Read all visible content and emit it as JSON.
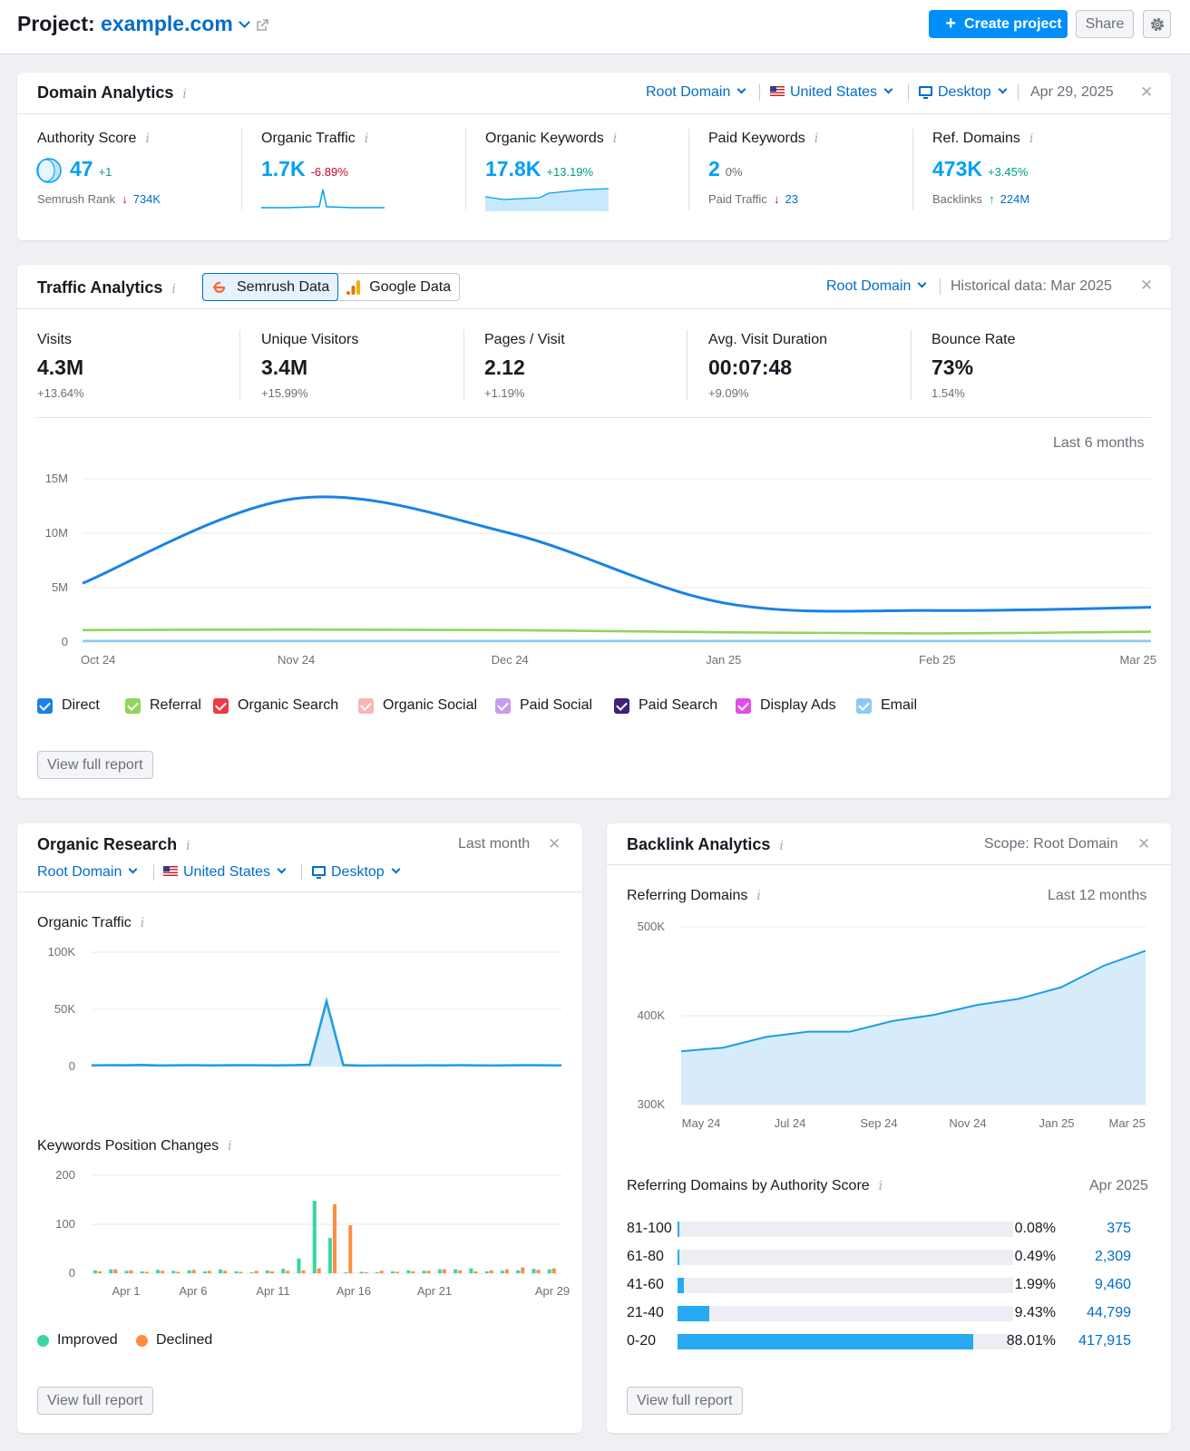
{
  "header": {
    "project_prefix": "Project:",
    "project_domain": "example.com",
    "create_label": "Create project",
    "share_label": "Share"
  },
  "domain_analytics": {
    "title": "Domain Analytics",
    "scope": "Root Domain",
    "country": "United States",
    "device": "Desktop",
    "date": "Apr 29, 2025",
    "metrics": [
      {
        "label": "Authority Score",
        "value": "47",
        "delta": "+1",
        "sub_label": "Semrush Rank",
        "sub_arrow": "↓",
        "sub_value": "734K"
      },
      {
        "label": "Organic Traffic",
        "value": "1.7K",
        "delta": "-6.89%"
      },
      {
        "label": "Organic Keywords",
        "value": "17.8K",
        "delta": "+13.19%"
      },
      {
        "label": "Paid Keywords",
        "value": "2",
        "delta": "0%",
        "sub_label": "Paid Traffic",
        "sub_arrow": "↓",
        "sub_value": "23"
      },
      {
        "label": "Ref. Domains",
        "value": "473K",
        "delta": "+3.45%",
        "sub_label": "Backlinks",
        "sub_arrow": "↑",
        "sub_value": "224M"
      }
    ],
    "colors": {
      "accent": "#009ff5",
      "link": "#006dca",
      "positive": "#009f81",
      "negative": "#d1002f"
    }
  },
  "traffic_analytics": {
    "title": "Traffic Analytics",
    "tab_semrush": "Semrush Data",
    "tab_google": "Google Data",
    "scope": "Root Domain",
    "historical": "Historical data: Mar 2025",
    "period": "Last 6 months",
    "metrics": [
      {
        "label": "Visits",
        "value": "4.3M",
        "delta": "+13.64%"
      },
      {
        "label": "Unique Visitors",
        "value": "3.4M",
        "delta": "+15.99%"
      },
      {
        "label": "Pages / Visit",
        "value": "2.12",
        "delta": "+1.19%"
      },
      {
        "label": "Avg. Visit Duration",
        "value": "00:07:48",
        "delta": "+9.09%"
      },
      {
        "label": "Bounce Rate",
        "value": "73%",
        "delta": "1.54%"
      }
    ],
    "legend": [
      {
        "name": "Direct",
        "color": "#1a82e5"
      },
      {
        "name": "Referral",
        "color": "#8fd65a"
      },
      {
        "name": "Organic Search",
        "color": "#ef3a46"
      },
      {
        "name": "Organic Social",
        "color": "#f7b6b6"
      },
      {
        "name": "Paid Social",
        "color": "#c89af0"
      },
      {
        "name": "Paid Search",
        "color": "#3f2176"
      },
      {
        "name": "Display Ads",
        "color": "#df4fe6"
      },
      {
        "name": "Email",
        "color": "#8ec9f5"
      }
    ],
    "view_full": "View full report"
  },
  "organic_research": {
    "title": "Organic Research",
    "period": "Last month",
    "scope": "Root Domain",
    "country": "United States",
    "device": "Desktop",
    "traffic_title": "Organic Traffic",
    "changes_title": "Keywords Position Changes",
    "legend_improved": "Improved",
    "legend_declined": "Declined",
    "view_full": "View full report"
  },
  "backlink_analytics": {
    "title": "Backlink Analytics",
    "scope": "Scope: Root Domain",
    "ref_title": "Referring Domains",
    "ref_period": "Last 12 months",
    "as_title": "Referring Domains by Authority Score",
    "as_period": "Apr 2025",
    "view_full": "View full report"
  },
  "chart_data": [
    {
      "type": "line",
      "title": "",
      "x": [
        "Oct 24",
        "Nov 24",
        "Dec 24",
        "Jan 25",
        "Feb 25",
        "Mar 25"
      ],
      "ylim": [
        0,
        15000000
      ],
      "yticks": [
        "15M",
        "10M",
        "5M",
        "0"
      ],
      "series": [
        {
          "name": "Direct",
          "values": [
            5400000,
            13200000,
            10000000,
            3600000,
            2900000,
            3200000
          ]
        },
        {
          "name": "Referral",
          "values": [
            1100000,
            1150000,
            1100000,
            900000,
            800000,
            950000
          ]
        },
        {
          "name": "Email",
          "values": [
            100000,
            100000,
            100000,
            100000,
            100000,
            100000
          ]
        }
      ]
    },
    {
      "type": "area",
      "title": "Organic Traffic",
      "ylim": [
        0,
        100000
      ],
      "yticks": [
        "100K",
        "50K",
        "0"
      ],
      "x_labels": [
        "Apr 1",
        "Apr 6",
        "Apr 11",
        "Apr 16",
        "Apr 21",
        "Apr 29"
      ],
      "values": [
        1000,
        1200,
        1100,
        1300,
        900,
        1100,
        1200,
        1000,
        1100,
        1200,
        1100,
        1000,
        1200,
        1500,
        57000,
        1200,
        800,
        900,
        1000,
        900,
        1100,
        1000,
        1200,
        1000,
        900,
        1100,
        1200,
        1100,
        1000
      ]
    },
    {
      "type": "bar",
      "title": "Keywords Position Changes",
      "ylim": [
        0,
        200
      ],
      "yticks": [
        "200",
        "100",
        "0"
      ],
      "x_labels": [
        "Apr 1",
        "Apr 6",
        "Apr 11",
        "Apr 16",
        "Apr 21",
        "Apr 29"
      ],
      "series": [
        {
          "name": "Improved",
          "values": [
            6,
            8,
            5,
            4,
            7,
            5,
            6,
            4,
            8,
            4,
            2,
            6,
            9,
            30,
            148,
            72,
            2,
            3,
            2,
            4,
            6,
            5,
            8,
            8,
            10,
            4,
            5,
            6,
            9,
            8
          ]
        },
        {
          "name": "Declined",
          "values": [
            4,
            8,
            6,
            3,
            5,
            3,
            7,
            5,
            5,
            3,
            5,
            4,
            5,
            6,
            10,
            141,
            98,
            2,
            5,
            3,
            4,
            5,
            8,
            6,
            4,
            6,
            8,
            12,
            7,
            10
          ]
        }
      ]
    },
    {
      "type": "area",
      "title": "Referring Domains",
      "x_labels": [
        "May 24",
        "Jul 24",
        "Sep 24",
        "Nov 24",
        "Jan 25",
        "Mar 25"
      ],
      "ylim": [
        300000,
        500000
      ],
      "yticks": [
        "500K",
        "400K",
        "300K"
      ],
      "values": [
        360000,
        364000,
        376000,
        382000,
        382000,
        394000,
        401000,
        412000,
        419000,
        432000,
        456000,
        473000
      ]
    },
    {
      "type": "bar",
      "title": "Referring Domains by Authority Score",
      "categories": [
        "81-100",
        "61-80",
        "41-60",
        "21-40",
        "0-20"
      ],
      "percents": [
        0.08,
        0.49,
        1.99,
        9.43,
        88.01
      ],
      "percent_labels": [
        "0.08%",
        "0.49%",
        "1.99%",
        "9.43%",
        "88.01%"
      ],
      "counts": [
        "375",
        "2,309",
        "9,460",
        "44,799",
        "417,915"
      ]
    }
  ]
}
